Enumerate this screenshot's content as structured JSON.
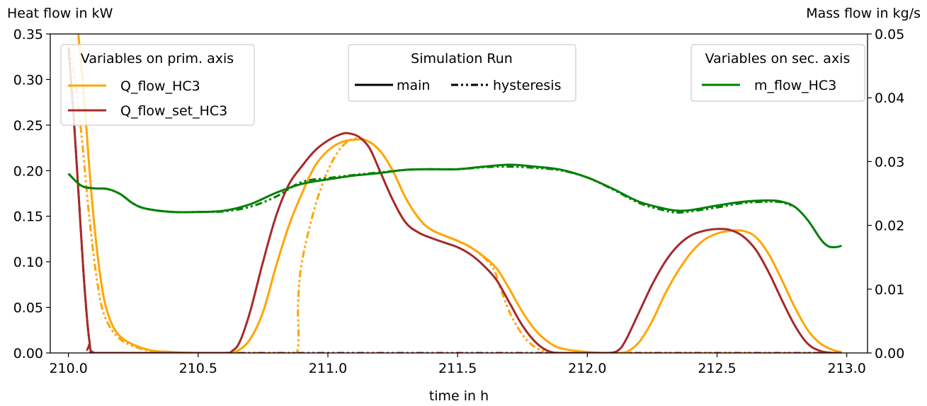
{
  "chart_data": {
    "type": "line",
    "title": "",
    "xlabel": "time in h",
    "ylabel_left": "Heat flow in kW",
    "ylabel_right": "Mass flow in kg/s",
    "xlim": [
      209.93,
      213.08
    ],
    "ylim_left": [
      0,
      0.35
    ],
    "ylim_right": [
      0,
      0.05
    ],
    "x_ticks": [
      "210.0",
      "210.5",
      "211.0",
      "211.5",
      "212.0",
      "212.5",
      "213.0"
    ],
    "y_ticks_left": [
      "0.00",
      "0.05",
      "0.10",
      "0.15",
      "0.20",
      "0.25",
      "0.30",
      "0.35"
    ],
    "y_ticks_right": [
      "0.00",
      "0.01",
      "0.02",
      "0.03",
      "0.04",
      "0.05"
    ],
    "grid": false,
    "legends": {
      "primary": {
        "title": "Variables on prim. axis",
        "placement": "upper-left",
        "entries": [
          {
            "label": "Q_flow_HC3",
            "color": "#ffa500"
          },
          {
            "label": "Q_flow_set_HC3",
            "color": "#a52a2a"
          }
        ]
      },
      "runs": {
        "title": "Simulation Run",
        "placement": "upper-center",
        "entries": [
          {
            "label": "main",
            "style": "solid"
          },
          {
            "label": "hysteresis",
            "style": "dashdotdot"
          }
        ]
      },
      "secondary": {
        "title": "Variables on sec. axis",
        "placement": "upper-right",
        "entries": [
          {
            "label": "m_flow_HC3",
            "color": "#008000"
          }
        ]
      }
    },
    "series": [
      {
        "name": "Q_flow_HC3",
        "run": "main",
        "axis": "left",
        "color": "#ffa500",
        "style": "solid",
        "points": [
          [
            210.0,
            0.4
          ],
          [
            210.03,
            0.37
          ],
          [
            210.06,
            0.28
          ],
          [
            210.09,
            0.17
          ],
          [
            210.12,
            0.09
          ],
          [
            210.15,
            0.045
          ],
          [
            210.2,
            0.018
          ],
          [
            210.3,
            0.004
          ],
          [
            210.4,
            0.001
          ],
          [
            210.5,
            0.0
          ],
          [
            210.6,
            0.0
          ],
          [
            210.65,
            0.002
          ],
          [
            210.7,
            0.015
          ],
          [
            210.75,
            0.045
          ],
          [
            210.8,
            0.095
          ],
          [
            210.85,
            0.14
          ],
          [
            210.9,
            0.175
          ],
          [
            210.95,
            0.205
          ],
          [
            211.0,
            0.222
          ],
          [
            211.05,
            0.231
          ],
          [
            211.1,
            0.234
          ],
          [
            211.15,
            0.233
          ],
          [
            211.2,
            0.222
          ],
          [
            211.25,
            0.2
          ],
          [
            211.3,
            0.17
          ],
          [
            211.35,
            0.148
          ],
          [
            211.4,
            0.135
          ],
          [
            211.5,
            0.123
          ],
          [
            211.55,
            0.116
          ],
          [
            211.6,
            0.106
          ],
          [
            211.65,
            0.093
          ],
          [
            211.7,
            0.07
          ],
          [
            211.75,
            0.045
          ],
          [
            211.8,
            0.025
          ],
          [
            211.85,
            0.012
          ],
          [
            211.9,
            0.005
          ],
          [
            212.0,
            0.001
          ],
          [
            212.1,
            0.0
          ],
          [
            212.15,
            0.001
          ],
          [
            212.2,
            0.012
          ],
          [
            212.25,
            0.035
          ],
          [
            212.3,
            0.065
          ],
          [
            212.35,
            0.09
          ],
          [
            212.4,
            0.11
          ],
          [
            212.45,
            0.124
          ],
          [
            212.5,
            0.131
          ],
          [
            212.55,
            0.134
          ],
          [
            212.6,
            0.134
          ],
          [
            212.65,
            0.127
          ],
          [
            212.7,
            0.108
          ],
          [
            212.75,
            0.08
          ],
          [
            212.8,
            0.05
          ],
          [
            212.85,
            0.025
          ],
          [
            212.9,
            0.01
          ],
          [
            212.95,
            0.003
          ],
          [
            212.98,
            0.001
          ]
        ]
      },
      {
        "name": "Q_flow_set_HC3",
        "run": "main",
        "axis": "left",
        "color": "#a52a2a",
        "style": "solid",
        "points": [
          [
            210.0,
            0.335
          ],
          [
            210.02,
            0.26
          ],
          [
            210.04,
            0.17
          ],
          [
            210.06,
            0.08
          ],
          [
            210.08,
            0.015
          ],
          [
            210.1,
            0.0
          ],
          [
            210.2,
            0.0
          ],
          [
            210.4,
            0.0
          ],
          [
            210.6,
            0.0
          ],
          [
            210.63,
            0.002
          ],
          [
            210.66,
            0.012
          ],
          [
            210.7,
            0.045
          ],
          [
            210.75,
            0.1
          ],
          [
            210.8,
            0.15
          ],
          [
            210.85,
            0.185
          ],
          [
            210.9,
            0.205
          ],
          [
            210.95,
            0.222
          ],
          [
            211.0,
            0.233
          ],
          [
            211.05,
            0.24
          ],
          [
            211.08,
            0.241
          ],
          [
            211.12,
            0.237
          ],
          [
            211.16,
            0.225
          ],
          [
            211.2,
            0.2
          ],
          [
            211.25,
            0.168
          ],
          [
            211.3,
            0.143
          ],
          [
            211.35,
            0.132
          ],
          [
            211.4,
            0.126
          ],
          [
            211.45,
            0.121
          ],
          [
            211.5,
            0.116
          ],
          [
            211.55,
            0.108
          ],
          [
            211.6,
            0.096
          ],
          [
            211.65,
            0.08
          ],
          [
            211.7,
            0.055
          ],
          [
            211.75,
            0.03
          ],
          [
            211.8,
            0.012
          ],
          [
            211.85,
            0.002
          ],
          [
            211.9,
            0.0
          ],
          [
            212.0,
            0.0
          ],
          [
            212.08,
            0.0
          ],
          [
            212.12,
            0.003
          ],
          [
            212.15,
            0.015
          ],
          [
            212.2,
            0.045
          ],
          [
            212.25,
            0.075
          ],
          [
            212.3,
            0.1
          ],
          [
            212.35,
            0.118
          ],
          [
            212.4,
            0.129
          ],
          [
            212.45,
            0.134
          ],
          [
            212.5,
            0.136
          ],
          [
            212.55,
            0.135
          ],
          [
            212.6,
            0.128
          ],
          [
            212.65,
            0.113
          ],
          [
            212.7,
            0.088
          ],
          [
            212.75,
            0.058
          ],
          [
            212.8,
            0.03
          ],
          [
            212.85,
            0.01
          ],
          [
            212.9,
            0.002
          ],
          [
            212.95,
            0.0
          ],
          [
            212.98,
            0.0
          ]
        ]
      },
      {
        "name": "Q_flow_HC3",
        "run": "hysteresis",
        "axis": "left",
        "color": "#ffa500",
        "style": "dashdotdot",
        "points": [
          [
            210.0,
            0.335
          ],
          [
            210.02,
            0.31
          ],
          [
            210.05,
            0.24
          ],
          [
            210.08,
            0.15
          ],
          [
            210.11,
            0.08
          ],
          [
            210.14,
            0.04
          ],
          [
            210.2,
            0.015
          ],
          [
            210.3,
            0.003
          ],
          [
            210.4,
            0.0
          ],
          [
            210.6,
            0.0
          ],
          [
            210.8,
            0.0
          ],
          [
            210.88,
            0.0
          ],
          [
            210.885,
            0.055
          ],
          [
            210.9,
            0.1
          ],
          [
            210.95,
            0.16
          ],
          [
            211.0,
            0.2
          ],
          [
            211.05,
            0.225
          ],
          [
            211.1,
            0.235
          ],
          [
            211.15,
            0.233
          ],
          [
            211.2,
            0.222
          ],
          [
            211.25,
            0.2
          ],
          [
            211.3,
            0.17
          ],
          [
            211.35,
            0.148
          ],
          [
            211.4,
            0.135
          ],
          [
            211.5,
            0.123
          ],
          [
            211.55,
            0.116
          ],
          [
            211.6,
            0.105
          ],
          [
            211.64,
            0.092
          ],
          [
            211.66,
            0.075
          ],
          [
            211.7,
            0.045
          ],
          [
            211.75,
            0.02
          ],
          [
            211.8,
            0.006
          ],
          [
            211.85,
            0.001
          ],
          [
            211.9,
            0.0
          ],
          [
            212.2,
            0.0
          ],
          [
            212.5,
            0.0
          ],
          [
            212.8,
            0.0
          ],
          [
            212.98,
            0.0
          ]
        ]
      },
      {
        "name": "Q_flow_set_HC3",
        "run": "hysteresis",
        "axis": "left",
        "color": "#a52a2a",
        "style": "dashdotdot",
        "points": [
          [
            210.0,
            0.335
          ],
          [
            210.02,
            0.26
          ],
          [
            210.04,
            0.17
          ],
          [
            210.06,
            0.08
          ],
          [
            210.08,
            0.015
          ],
          [
            210.1,
            0.0
          ],
          [
            210.4,
            0.0
          ],
          [
            210.7,
            0.0
          ],
          [
            211.0,
            0.0
          ],
          [
            211.5,
            0.0
          ],
          [
            212.0,
            0.0
          ],
          [
            212.5,
            0.0
          ],
          [
            212.98,
            0.0
          ]
        ]
      },
      {
        "name": "m_flow_HC3",
        "run": "main",
        "axis": "right",
        "color": "#008000",
        "style": "solid",
        "points": [
          [
            210.0,
            0.0281
          ],
          [
            210.05,
            0.0262
          ],
          [
            210.1,
            0.0258
          ],
          [
            210.15,
            0.0257
          ],
          [
            210.2,
            0.0249
          ],
          [
            210.25,
            0.0234
          ],
          [
            210.3,
            0.0226
          ],
          [
            210.4,
            0.0221
          ],
          [
            210.5,
            0.0221
          ],
          [
            210.6,
            0.0223
          ],
          [
            210.7,
            0.0233
          ],
          [
            210.8,
            0.0251
          ],
          [
            210.9,
            0.0265
          ],
          [
            211.0,
            0.0272
          ],
          [
            211.1,
            0.0278
          ],
          [
            211.2,
            0.0282
          ],
          [
            211.3,
            0.0287
          ],
          [
            211.4,
            0.0288
          ],
          [
            211.5,
            0.0288
          ],
          [
            211.6,
            0.0292
          ],
          [
            211.7,
            0.0295
          ],
          [
            211.8,
            0.0292
          ],
          [
            211.9,
            0.0287
          ],
          [
            212.0,
            0.0275
          ],
          [
            212.1,
            0.0257
          ],
          [
            212.2,
            0.0237
          ],
          [
            212.3,
            0.0226
          ],
          [
            212.35,
            0.0223
          ],
          [
            212.4,
            0.0224
          ],
          [
            212.5,
            0.0231
          ],
          [
            212.6,
            0.0237
          ],
          [
            212.7,
            0.0239
          ],
          [
            212.75,
            0.0237
          ],
          [
            212.8,
            0.0229
          ],
          [
            212.85,
            0.0208
          ],
          [
            212.9,
            0.0178
          ],
          [
            212.93,
            0.0167
          ],
          [
            212.96,
            0.0166
          ],
          [
            212.98,
            0.0168
          ]
        ]
      },
      {
        "name": "m_flow_HC3",
        "run": "hysteresis",
        "axis": "right",
        "color": "#008000",
        "style": "dashdotdot",
        "points": [
          [
            210.0,
            0.0281
          ],
          [
            210.05,
            0.0262
          ],
          [
            210.1,
            0.0258
          ],
          [
            210.15,
            0.0257
          ],
          [
            210.2,
            0.0249
          ],
          [
            210.25,
            0.0234
          ],
          [
            210.3,
            0.0226
          ],
          [
            210.4,
            0.0221
          ],
          [
            210.5,
            0.0221
          ],
          [
            210.6,
            0.0222
          ],
          [
            210.7,
            0.0229
          ],
          [
            210.8,
            0.0245
          ],
          [
            210.9,
            0.0268
          ],
          [
            211.0,
            0.0274
          ],
          [
            211.1,
            0.0279
          ],
          [
            211.2,
            0.0283
          ],
          [
            211.3,
            0.0287
          ],
          [
            211.4,
            0.0288
          ],
          [
            211.5,
            0.0288
          ],
          [
            211.6,
            0.0291
          ],
          [
            211.7,
            0.0292
          ],
          [
            211.8,
            0.029
          ],
          [
            211.9,
            0.0286
          ],
          [
            212.0,
            0.0275
          ],
          [
            212.1,
            0.0256
          ],
          [
            212.2,
            0.0235
          ],
          [
            212.3,
            0.0223
          ],
          [
            212.35,
            0.022
          ],
          [
            212.4,
            0.0222
          ],
          [
            212.5,
            0.0228
          ],
          [
            212.6,
            0.0235
          ],
          [
            212.7,
            0.0237
          ],
          [
            212.75,
            0.0236
          ],
          [
            212.8,
            0.0229
          ]
        ]
      }
    ]
  }
}
